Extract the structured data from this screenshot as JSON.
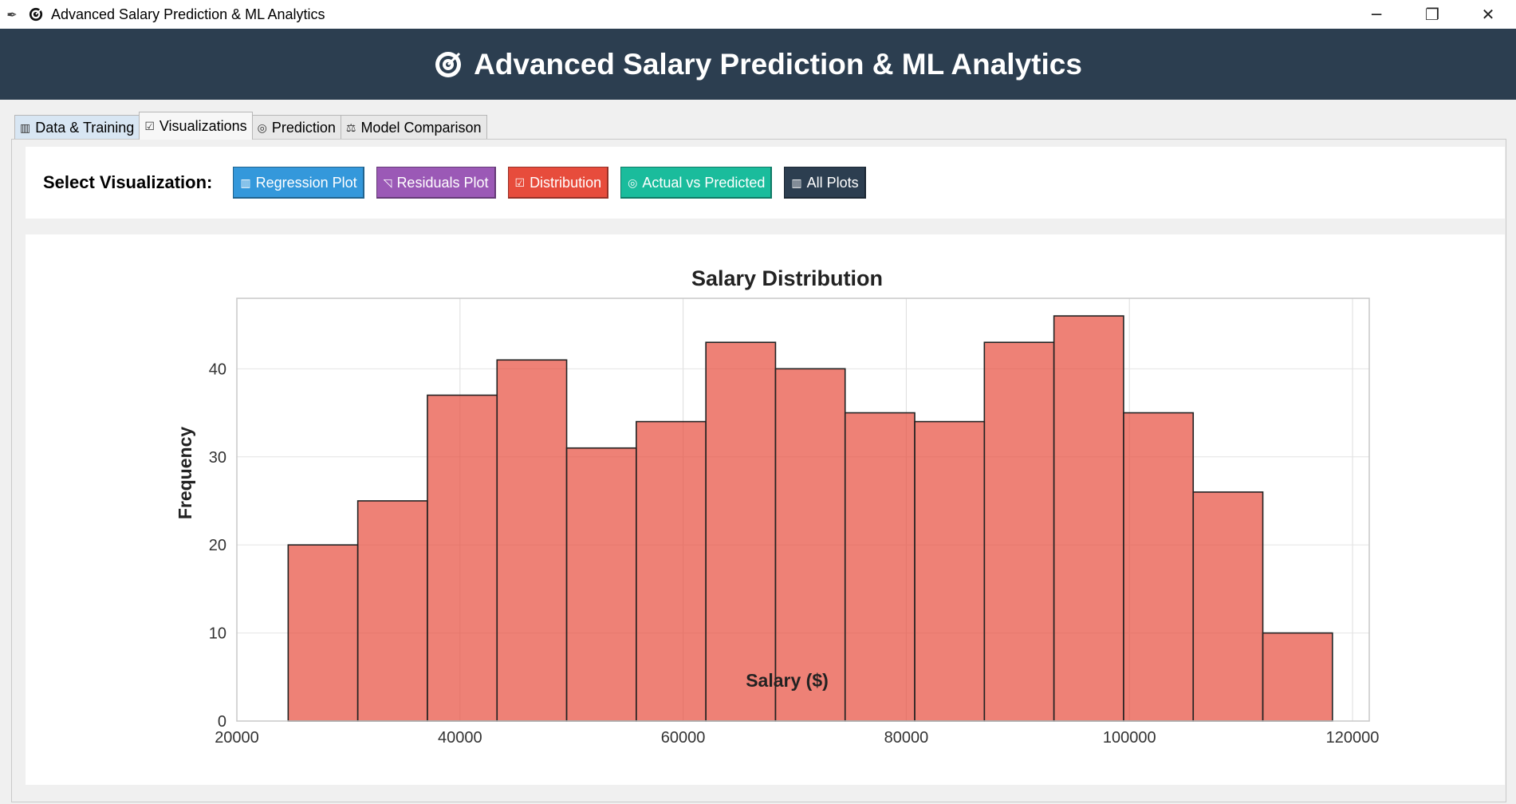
{
  "window": {
    "title": "Advanced Salary Prediction & ML Analytics",
    "controls": [
      "─",
      "❐",
      "✕"
    ]
  },
  "header": {
    "title": "Advanced Salary Prediction & ML Analytics",
    "background": "#2c3e50"
  },
  "tabs": [
    {
      "label": "Data & Training",
      "icon": "bar-chart-icon",
      "glyph": "▥"
    },
    {
      "label": "Visualizations",
      "icon": "chart-check-icon",
      "glyph": "☑"
    },
    {
      "label": "Prediction",
      "icon": "crystal-ball-icon",
      "glyph": "◎"
    },
    {
      "label": "Model Comparison",
      "icon": "scales-icon",
      "glyph": "⚖"
    }
  ],
  "active_tab": "Visualizations",
  "select_bar": {
    "label": "Select Visualization:",
    "buttons": [
      {
        "label": "Regression Plot",
        "color": "#3498db",
        "glyph": "▥"
      },
      {
        "label": "Residuals Plot",
        "color": "#9b59b6",
        "glyph": "◹"
      },
      {
        "label": "Distribution",
        "color": "#e74c3c",
        "glyph": "☑"
      },
      {
        "label": "Actual vs Predicted",
        "color": "#1abc9c",
        "glyph": "◎"
      },
      {
        "label": "All Plots",
        "color": "#2c3e50",
        "glyph": "▥"
      }
    ]
  },
  "chart_data": {
    "type": "bar",
    "title": "Salary Distribution",
    "xlabel": "Salary ($)",
    "ylabel": "Frequency",
    "xlim": [
      20000,
      121500
    ],
    "ylim": [
      0,
      48
    ],
    "xticks": [
      20000,
      40000,
      60000,
      80000,
      100000,
      120000
    ],
    "yticks": [
      0,
      10,
      20,
      30,
      40
    ],
    "grid": true,
    "bar_color": "#e74c3c",
    "bin_start": 24600,
    "bin_width": 6240,
    "values": [
      20,
      25,
      37,
      41,
      31,
      34,
      43,
      40,
      35,
      34,
      43,
      46,
      35,
      26,
      10
    ]
  }
}
